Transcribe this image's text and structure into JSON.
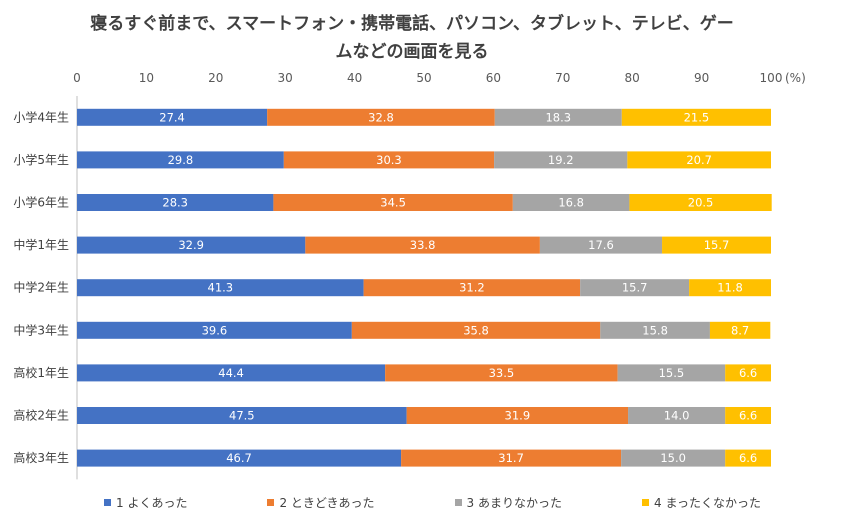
{
  "chart_data": {
    "type": "bar",
    "orientation": "horizontal",
    "stacked": true,
    "title_lines": [
      "寝るすぐ前まで、スマートフォン・携帯電話、パソコン、タブレット、テレビ、ゲー",
      "ムなどの画面を見る"
    ],
    "x_unit": "(%)",
    "xlim": [
      0,
      100
    ],
    "x_ticks": [
      "0",
      "10",
      "20",
      "30",
      "40",
      "50",
      "60",
      "70",
      "80",
      "90",
      "100"
    ],
    "grid": false,
    "legend_position": "bottom",
    "categories": [
      "小学4年生",
      "小学5年生",
      "小学6年生",
      "中学1年生",
      "中学2年生",
      "中学3年生",
      "高校1年生",
      "高校2年生",
      "高校3年生"
    ],
    "series": [
      {
        "name": "1 よくあった",
        "color": "#4472C4",
        "values": [
          27.4,
          29.8,
          28.3,
          32.9,
          41.3,
          39.6,
          44.4,
          47.5,
          46.7
        ]
      },
      {
        "name": "2 ときどきあった",
        "color": "#ED7D31",
        "values": [
          32.8,
          30.3,
          34.5,
          33.8,
          31.2,
          35.8,
          33.5,
          31.9,
          31.7
        ]
      },
      {
        "name": "3 あまりなかった",
        "color": "#A5A5A5",
        "values": [
          18.3,
          19.2,
          16.8,
          17.6,
          15.7,
          15.8,
          15.5,
          14.0,
          15.0
        ]
      },
      {
        "name": "4 まったくなかった",
        "color": "#FFC000",
        "values": [
          21.5,
          20.7,
          20.5,
          15.7,
          11.8,
          8.7,
          6.6,
          6.6,
          6.6
        ]
      }
    ]
  }
}
